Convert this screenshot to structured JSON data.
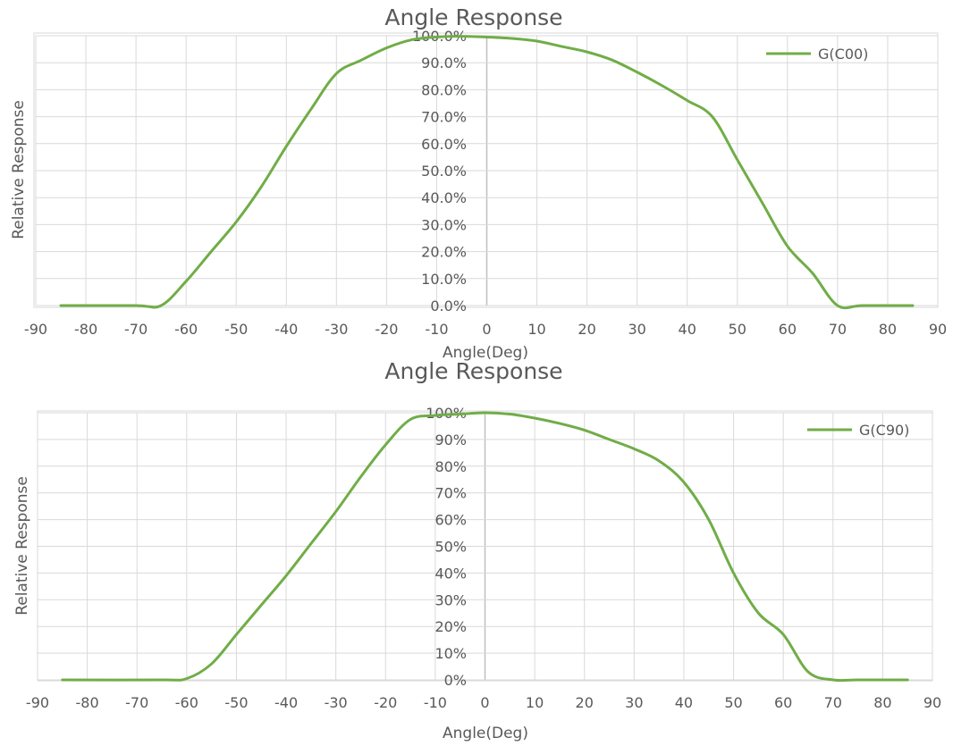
{
  "chart_data": [
    {
      "type": "line",
      "title": "Angle Response",
      "xlabel": "Angle(Deg)",
      "ylabel": "Relative Response",
      "xlim": [
        -90,
        90
      ],
      "ylim": [
        0,
        100
      ],
      "x_ticks": [
        -90,
        -80,
        -70,
        -60,
        -50,
        -40,
        -30,
        -20,
        -10,
        0,
        10,
        20,
        30,
        40,
        50,
        60,
        70,
        80,
        90
      ],
      "x_tick_labels": [
        "-90",
        "-80",
        "-70",
        "-60",
        "-50",
        "-40",
        "-30",
        "-20",
        "-10",
        "0",
        "10",
        "20",
        "30",
        "40",
        "50",
        "60",
        "70",
        "80",
        "90"
      ],
      "y_tick_labels": [
        "0.0%",
        "10.0%",
        "20.0%",
        "30.0%",
        "40.0%",
        "50.0%",
        "60.0%",
        "70.0%",
        "80.0%",
        "90.0%",
        "100.0%"
      ],
      "grid": true,
      "legend_position": "top-right",
      "series": [
        {
          "name": "G(C00)",
          "color": "#70ad47",
          "x": [
            -85,
            -70,
            -65,
            -60,
            -55,
            -50,
            -45,
            -40,
            -35,
            -30,
            -25,
            -20,
            -15,
            -10,
            -5,
            0,
            5,
            10,
            15,
            20,
            25,
            30,
            35,
            40,
            45,
            50,
            55,
            60,
            65,
            70,
            75,
            85
          ],
          "y": [
            0,
            0,
            0,
            9,
            20,
            31,
            44,
            59,
            73,
            86,
            91,
            95.5,
            98.5,
            99.5,
            99.8,
            99.5,
            99,
            98,
            96,
            94,
            91,
            86.5,
            81.5,
            76,
            70,
            54,
            38,
            22,
            12,
            0,
            0,
            0
          ]
        }
      ]
    },
    {
      "type": "line",
      "title": "Angle Response",
      "xlabel": "Angle(Deg)",
      "ylabel": "Relative Response",
      "xlim": [
        -90,
        90
      ],
      "ylim": [
        0,
        100
      ],
      "x_ticks": [
        -90,
        -80,
        -70,
        -60,
        -50,
        -40,
        -30,
        -20,
        -10,
        0,
        10,
        20,
        30,
        40,
        50,
        60,
        70,
        80,
        90
      ],
      "x_tick_labels": [
        "-90",
        "-80",
        "-70",
        "-60",
        "-50",
        "-40",
        "-30",
        "-20",
        "-10",
        "0",
        "10",
        "20",
        "30",
        "40",
        "50",
        "60",
        "70",
        "80",
        "90"
      ],
      "y_tick_labels": [
        "0%",
        "10%",
        "20%",
        "30%",
        "40%",
        "50%",
        "60%",
        "70%",
        "80%",
        "90%",
        "100%"
      ],
      "grid": true,
      "legend_position": "top-right",
      "series": [
        {
          "name": "G(C90)",
          "color": "#70ad47",
          "x": [
            -85,
            -65,
            -60,
            -55,
            -50,
            -45,
            -40,
            -35,
            -30,
            -25,
            -20,
            -15,
            -10,
            -5,
            0,
            5,
            10,
            15,
            20,
            25,
            30,
            35,
            40,
            45,
            50,
            55,
            60,
            65,
            70,
            75,
            85
          ],
          "y": [
            0,
            0,
            0.5,
            6,
            17,
            28,
            39,
            51,
            63,
            76,
            88,
            97.5,
            99,
            99.5,
            100,
            99.5,
            98,
            96,
            93.5,
            90,
            86.5,
            82,
            74,
            60,
            40,
            25,
            17,
            3,
            0,
            0,
            0
          ]
        }
      ]
    }
  ]
}
